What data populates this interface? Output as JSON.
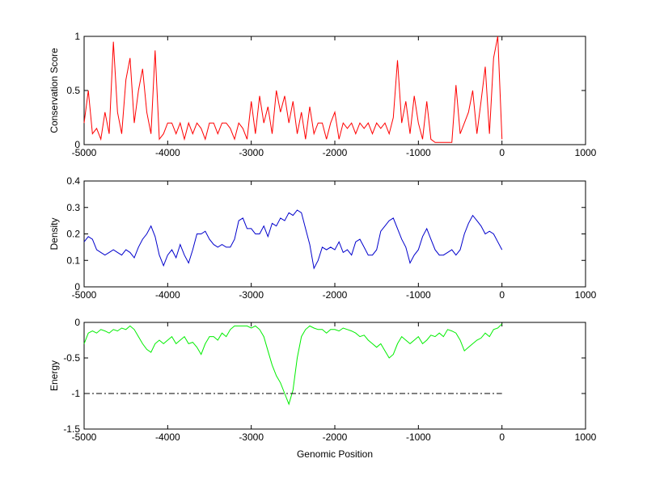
{
  "chart_data": [
    {
      "type": "line",
      "ylabel": "Conservation Score",
      "color": "#ff0000",
      "xlim": [
        -5000,
        1000
      ],
      "ylim": [
        0,
        1
      ],
      "xticks": [
        -5000,
        -4000,
        -3000,
        -2000,
        -1000,
        0,
        1000
      ],
      "yticks": [
        0,
        0.5,
        1
      ],
      "x": [
        -5000,
        -4950,
        -4900,
        -4850,
        -4800,
        -4750,
        -4700,
        -4650,
        -4600,
        -4550,
        -4500,
        -4450,
        -4400,
        -4350,
        -4300,
        -4250,
        -4200,
        -4150,
        -4100,
        -4050,
        -4000,
        -3950,
        -3900,
        -3850,
        -3800,
        -3750,
        -3700,
        -3650,
        -3600,
        -3550,
        -3500,
        -3450,
        -3400,
        -3350,
        -3300,
        -3250,
        -3200,
        -3150,
        -3100,
        -3050,
        -3000,
        -2950,
        -2900,
        -2850,
        -2800,
        -2750,
        -2700,
        -2650,
        -2600,
        -2550,
        -2500,
        -2450,
        -2400,
        -2350,
        -2300,
        -2250,
        -2200,
        -2150,
        -2100,
        -2050,
        -2000,
        -1950,
        -1900,
        -1850,
        -1800,
        -1750,
        -1700,
        -1650,
        -1600,
        -1550,
        -1500,
        -1450,
        -1400,
        -1350,
        -1300,
        -1250,
        -1200,
        -1150,
        -1100,
        -1050,
        -1000,
        -950,
        -900,
        -850,
        -800,
        -750,
        -700,
        -650,
        -600,
        -550,
        -500,
        -450,
        -400,
        -350,
        -300,
        -250,
        -200,
        -150,
        -100,
        -50,
        0
      ],
      "values": [
        0.2,
        0.5,
        0.1,
        0.15,
        0.05,
        0.3,
        0.1,
        0.95,
        0.3,
        0.1,
        0.6,
        0.8,
        0.2,
        0.5,
        0.7,
        0.3,
        0.1,
        0.87,
        0.05,
        0.1,
        0.2,
        0.2,
        0.1,
        0.2,
        0.05,
        0.2,
        0.1,
        0.2,
        0.15,
        0.05,
        0.2,
        0.2,
        0.1,
        0.2,
        0.2,
        0.15,
        0.05,
        0.2,
        0.15,
        0.05,
        0.4,
        0.1,
        0.45,
        0.2,
        0.35,
        0.1,
        0.5,
        0.3,
        0.45,
        0.2,
        0.4,
        0.1,
        0.3,
        0.05,
        0.35,
        0.1,
        0.2,
        0.2,
        0.05,
        0.2,
        0.3,
        0.05,
        0.2,
        0.15,
        0.2,
        0.1,
        0.2,
        0.15,
        0.2,
        0.1,
        0.2,
        0.15,
        0.2,
        0.1,
        0.25,
        0.78,
        0.2,
        0.4,
        0.1,
        0.45,
        0.2,
        0.05,
        0.4,
        0.05,
        0.02,
        0.02,
        0.02,
        0.02,
        0.02,
        0.55,
        0.1,
        0.2,
        0.3,
        0.5,
        0.1,
        0.4,
        0.72,
        0.1,
        0.8,
        1,
        0.05
      ]
    },
    {
      "type": "line",
      "ylabel": "Density",
      "color": "#0000cc",
      "xlim": [
        -5000,
        1000
      ],
      "ylim": [
        0,
        0.4
      ],
      "xticks": [
        -5000,
        -4000,
        -3000,
        -2000,
        -1000,
        0,
        1000
      ],
      "yticks": [
        0,
        0.1,
        0.2,
        0.3,
        0.4
      ],
      "x": [
        -5000,
        -4950,
        -4900,
        -4850,
        -4800,
        -4750,
        -4700,
        -4650,
        -4600,
        -4550,
        -4500,
        -4450,
        -4400,
        -4350,
        -4300,
        -4250,
        -4200,
        -4150,
        -4100,
        -4050,
        -4000,
        -3950,
        -3900,
        -3850,
        -3800,
        -3750,
        -3700,
        -3650,
        -3600,
        -3550,
        -3500,
        -3450,
        -3400,
        -3350,
        -3300,
        -3250,
        -3200,
        -3150,
        -3100,
        -3050,
        -3000,
        -2950,
        -2900,
        -2850,
        -2800,
        -2750,
        -2700,
        -2650,
        -2600,
        -2550,
        -2500,
        -2450,
        -2400,
        -2350,
        -2300,
        -2250,
        -2200,
        -2150,
        -2100,
        -2050,
        -2000,
        -1950,
        -1900,
        -1850,
        -1800,
        -1750,
        -1700,
        -1650,
        -1600,
        -1550,
        -1500,
        -1450,
        -1400,
        -1350,
        -1300,
        -1250,
        -1200,
        -1150,
        -1100,
        -1050,
        -1000,
        -950,
        -900,
        -850,
        -800,
        -750,
        -700,
        -650,
        -600,
        -550,
        -500,
        -450,
        -400,
        -350,
        -300,
        -250,
        -200,
        -150,
        -100,
        -50,
        0
      ],
      "values": [
        0.17,
        0.19,
        0.18,
        0.14,
        0.13,
        0.12,
        0.13,
        0.14,
        0.13,
        0.12,
        0.14,
        0.13,
        0.11,
        0.15,
        0.18,
        0.2,
        0.23,
        0.19,
        0.12,
        0.08,
        0.12,
        0.14,
        0.11,
        0.16,
        0.12,
        0.09,
        0.14,
        0.2,
        0.2,
        0.21,
        0.18,
        0.16,
        0.15,
        0.16,
        0.15,
        0.15,
        0.18,
        0.25,
        0.26,
        0.22,
        0.22,
        0.2,
        0.2,
        0.23,
        0.19,
        0.24,
        0.23,
        0.26,
        0.25,
        0.28,
        0.27,
        0.29,
        0.28,
        0.22,
        0.16,
        0.07,
        0.1,
        0.15,
        0.14,
        0.15,
        0.14,
        0.17,
        0.13,
        0.14,
        0.12,
        0.17,
        0.18,
        0.15,
        0.12,
        0.12,
        0.14,
        0.21,
        0.23,
        0.25,
        0.26,
        0.22,
        0.18,
        0.15,
        0.09,
        0.12,
        0.14,
        0.19,
        0.22,
        0.18,
        0.14,
        0.12,
        0.12,
        0.13,
        0.14,
        0.12,
        0.14,
        0.2,
        0.24,
        0.27,
        0.25,
        0.23,
        0.2,
        0.21,
        0.2,
        0.17,
        0.14
      ]
    },
    {
      "type": "line",
      "ylabel": "Energy",
      "xlabel": "Genomic Position",
      "color": "#00ee00",
      "xlim": [
        -5000,
        1000
      ],
      "ylim": [
        -1.5,
        0
      ],
      "xticks": [
        -5000,
        -4000,
        -3000,
        -2000,
        -1000,
        0,
        1000
      ],
      "yticks": [
        -1.5,
        -1,
        -0.5,
        0
      ],
      "x": [
        -5000,
        -4950,
        -4900,
        -4850,
        -4800,
        -4750,
        -4700,
        -4650,
        -4600,
        -4550,
        -4500,
        -4450,
        -4400,
        -4350,
        -4300,
        -4250,
        -4200,
        -4150,
        -4100,
        -4050,
        -4000,
        -3950,
        -3900,
        -3850,
        -3800,
        -3750,
        -3700,
        -3650,
        -3600,
        -3550,
        -3500,
        -3450,
        -3400,
        -3350,
        -3300,
        -3250,
        -3200,
        -3150,
        -3100,
        -3050,
        -3000,
        -2950,
        -2900,
        -2850,
        -2800,
        -2750,
        -2700,
        -2650,
        -2600,
        -2550,
        -2500,
        -2450,
        -2400,
        -2350,
        -2300,
        -2250,
        -2200,
        -2150,
        -2100,
        -2050,
        -2000,
        -1950,
        -1900,
        -1850,
        -1800,
        -1750,
        -1700,
        -1650,
        -1600,
        -1550,
        -1500,
        -1450,
        -1400,
        -1350,
        -1300,
        -1250,
        -1200,
        -1150,
        -1100,
        -1050,
        -1000,
        -950,
        -900,
        -850,
        -800,
        -750,
        -700,
        -650,
        -600,
        -550,
        -500,
        -450,
        -400,
        -350,
        -300,
        -250,
        -200,
        -150,
        -100,
        -50,
        0
      ],
      "values": [
        -0.3,
        -0.15,
        -0.12,
        -0.15,
        -0.1,
        -0.12,
        -0.15,
        -0.1,
        -0.12,
        -0.08,
        -0.1,
        -0.05,
        -0.1,
        -0.2,
        -0.3,
        -0.38,
        -0.42,
        -0.3,
        -0.25,
        -0.3,
        -0.25,
        -0.2,
        -0.3,
        -0.25,
        -0.2,
        -0.3,
        -0.28,
        -0.35,
        -0.45,
        -0.3,
        -0.2,
        -0.2,
        -0.25,
        -0.15,
        -0.2,
        -0.1,
        -0.05,
        -0.05,
        -0.05,
        -0.05,
        -0.08,
        -0.05,
        -0.1,
        -0.2,
        -0.4,
        -0.6,
        -0.75,
        -0.85,
        -1.0,
        -1.15,
        -0.95,
        -0.5,
        -0.2,
        -0.1,
        -0.05,
        -0.08,
        -0.1,
        -0.1,
        -0.15,
        -0.1,
        -0.1,
        -0.12,
        -0.08,
        -0.1,
        -0.12,
        -0.15,
        -0.2,
        -0.18,
        -0.25,
        -0.3,
        -0.35,
        -0.3,
        -0.4,
        -0.5,
        -0.45,
        -0.3,
        -0.2,
        -0.25,
        -0.3,
        -0.25,
        -0.2,
        -0.3,
        -0.25,
        -0.18,
        -0.2,
        -0.15,
        -0.2,
        -0.1,
        -0.12,
        -0.15,
        -0.25,
        -0.4,
        -0.35,
        -0.3,
        -0.25,
        -0.22,
        -0.15,
        -0.2,
        -0.1,
        -0.08,
        -0.02
      ],
      "reference_line": {
        "y": -1,
        "x": [
          -5000,
          0
        ],
        "color": "#000000",
        "style": "dash-dot"
      }
    }
  ]
}
